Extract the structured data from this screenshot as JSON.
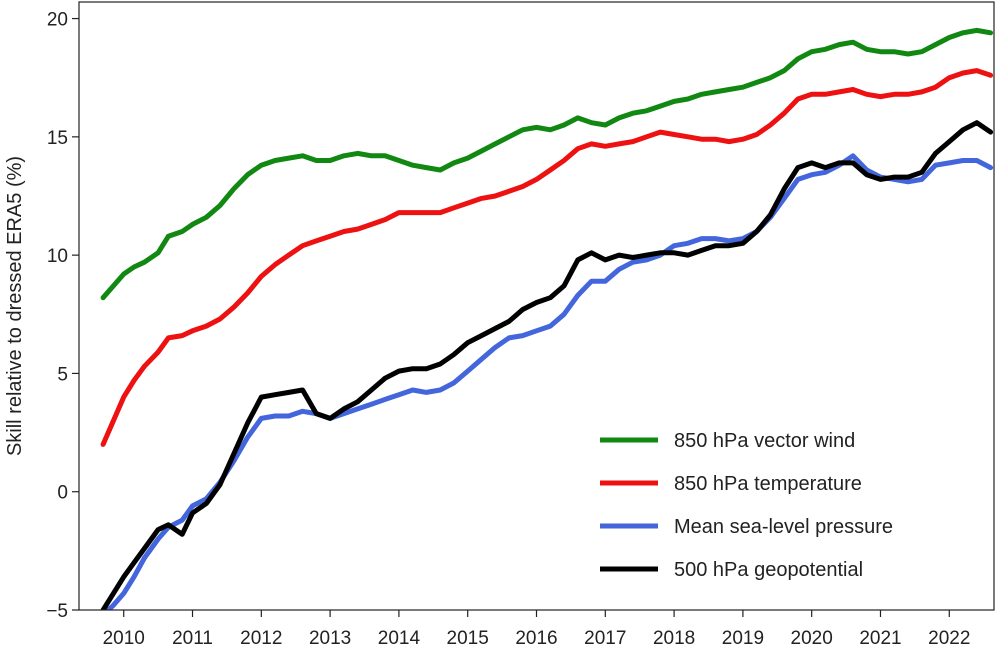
{
  "chart_data": {
    "type": "line",
    "title": "",
    "xlabel": "",
    "ylabel": "Skill relative to dressed ERA5 (%)",
    "xlim": [
      2009.35,
      2022.65
    ],
    "ylim": [
      -5,
      20.7
    ],
    "x_ticks": [
      2010,
      2011,
      2012,
      2013,
      2014,
      2015,
      2016,
      2017,
      2018,
      2019,
      2020,
      2021,
      2022
    ],
    "x_tick_labels": [
      "2010",
      "2011",
      "2012",
      "2013",
      "2014",
      "2015",
      "2016",
      "2017",
      "2018",
      "2019",
      "2020",
      "2021",
      "2022"
    ],
    "y_ticks": [
      -5,
      0,
      5,
      10,
      15,
      20
    ],
    "y_tick_labels": [
      "−5",
      "0",
      "5",
      "10",
      "15",
      "20"
    ],
    "grid": false,
    "legend_position": "bottom-right",
    "series": [
      {
        "name": "850 hPa vector wind",
        "color": "#118811",
        "x": [
          2009.7,
          2009.85,
          2010.0,
          2010.15,
          2010.3,
          2010.5,
          2010.65,
          2010.85,
          2011.0,
          2011.2,
          2011.4,
          2011.6,
          2011.8,
          2012.0,
          2012.2,
          2012.4,
          2012.6,
          2012.8,
          2013.0,
          2013.2,
          2013.4,
          2013.6,
          2013.8,
          2014.0,
          2014.2,
          2014.4,
          2014.6,
          2014.8,
          2015.0,
          2015.2,
          2015.4,
          2015.6,
          2015.8,
          2016.0,
          2016.2,
          2016.4,
          2016.6,
          2016.8,
          2017.0,
          2017.2,
          2017.4,
          2017.6,
          2017.8,
          2018.0,
          2018.2,
          2018.4,
          2018.6,
          2018.8,
          2019.0,
          2019.2,
          2019.4,
          2019.6,
          2019.8,
          2020.0,
          2020.2,
          2020.4,
          2020.6,
          2020.8,
          2021.0,
          2021.2,
          2021.4,
          2021.6,
          2021.8,
          2022.0,
          2022.2,
          2022.4,
          2022.6
        ],
        "values": [
          8.2,
          8.7,
          9.2,
          9.5,
          9.7,
          10.1,
          10.8,
          11.0,
          11.3,
          11.6,
          12.1,
          12.8,
          13.4,
          13.8,
          14.0,
          14.1,
          14.2,
          14.0,
          14.0,
          14.2,
          14.3,
          14.2,
          14.2,
          14.0,
          13.8,
          13.7,
          13.6,
          13.9,
          14.1,
          14.4,
          14.7,
          15.0,
          15.3,
          15.4,
          15.3,
          15.5,
          15.8,
          15.6,
          15.5,
          15.8,
          16.0,
          16.1,
          16.3,
          16.5,
          16.6,
          16.8,
          16.9,
          17.0,
          17.1,
          17.3,
          17.5,
          17.8,
          18.3,
          18.6,
          18.7,
          18.9,
          19.0,
          18.7,
          18.6,
          18.6,
          18.5,
          18.6,
          18.9,
          19.2,
          19.4,
          19.5,
          19.4
        ]
      },
      {
        "name": "850 hPa temperature",
        "color": "#ee1111",
        "x": [
          2009.7,
          2009.85,
          2010.0,
          2010.15,
          2010.3,
          2010.5,
          2010.65,
          2010.85,
          2011.0,
          2011.2,
          2011.4,
          2011.6,
          2011.8,
          2012.0,
          2012.2,
          2012.4,
          2012.6,
          2012.8,
          2013.0,
          2013.2,
          2013.4,
          2013.6,
          2013.8,
          2014.0,
          2014.2,
          2014.4,
          2014.6,
          2014.8,
          2015.0,
          2015.2,
          2015.4,
          2015.6,
          2015.8,
          2016.0,
          2016.2,
          2016.4,
          2016.6,
          2016.8,
          2017.0,
          2017.2,
          2017.4,
          2017.6,
          2017.8,
          2018.0,
          2018.2,
          2018.4,
          2018.6,
          2018.8,
          2019.0,
          2019.2,
          2019.4,
          2019.6,
          2019.8,
          2020.0,
          2020.2,
          2020.4,
          2020.6,
          2020.8,
          2021.0,
          2021.2,
          2021.4,
          2021.6,
          2021.8,
          2022.0,
          2022.2,
          2022.4,
          2022.6
        ],
        "values": [
          2.0,
          3.0,
          4.0,
          4.7,
          5.3,
          5.9,
          6.5,
          6.6,
          6.8,
          7.0,
          7.3,
          7.8,
          8.4,
          9.1,
          9.6,
          10.0,
          10.4,
          10.6,
          10.8,
          11.0,
          11.1,
          11.3,
          11.5,
          11.8,
          11.8,
          11.8,
          11.8,
          12.0,
          12.2,
          12.4,
          12.5,
          12.7,
          12.9,
          13.2,
          13.6,
          14.0,
          14.5,
          14.7,
          14.6,
          14.7,
          14.8,
          15.0,
          15.2,
          15.1,
          15.0,
          14.9,
          14.9,
          14.8,
          14.9,
          15.1,
          15.5,
          16.0,
          16.6,
          16.8,
          16.8,
          16.9,
          17.0,
          16.8,
          16.7,
          16.8,
          16.8,
          16.9,
          17.1,
          17.5,
          17.7,
          17.8,
          17.6
        ]
      },
      {
        "name": "Mean sea-level pressure",
        "color": "#4466dd",
        "x": [
          2009.7,
          2009.85,
          2010.0,
          2010.15,
          2010.3,
          2010.5,
          2010.65,
          2010.85,
          2011.0,
          2011.2,
          2011.4,
          2011.6,
          2011.8,
          2012.0,
          2012.2,
          2012.4,
          2012.6,
          2012.8,
          2013.0,
          2013.2,
          2013.4,
          2013.6,
          2013.8,
          2014.0,
          2014.2,
          2014.4,
          2014.6,
          2014.8,
          2015.0,
          2015.2,
          2015.4,
          2015.6,
          2015.8,
          2016.0,
          2016.2,
          2016.4,
          2016.6,
          2016.8,
          2017.0,
          2017.2,
          2017.4,
          2017.6,
          2017.8,
          2018.0,
          2018.2,
          2018.4,
          2018.6,
          2018.8,
          2019.0,
          2019.2,
          2019.4,
          2019.6,
          2019.8,
          2020.0,
          2020.2,
          2020.4,
          2020.6,
          2020.8,
          2021.0,
          2021.2,
          2021.4,
          2021.6,
          2021.8,
          2022.0,
          2022.2,
          2022.4,
          2022.6
        ],
        "values": [
          -5.2,
          -4.8,
          -4.3,
          -3.6,
          -2.8,
          -2.0,
          -1.5,
          -1.2,
          -0.6,
          -0.3,
          0.4,
          1.3,
          2.3,
          3.1,
          3.2,
          3.2,
          3.4,
          3.3,
          3.1,
          3.3,
          3.5,
          3.7,
          3.9,
          4.1,
          4.3,
          4.2,
          4.3,
          4.6,
          5.1,
          5.6,
          6.1,
          6.5,
          6.6,
          6.8,
          7.0,
          7.5,
          8.3,
          8.9,
          8.9,
          9.4,
          9.7,
          9.8,
          10.0,
          10.4,
          10.5,
          10.7,
          10.7,
          10.6,
          10.7,
          11.0,
          11.6,
          12.4,
          13.2,
          13.4,
          13.5,
          13.8,
          14.2,
          13.6,
          13.3,
          13.2,
          13.1,
          13.2,
          13.8,
          13.9,
          14.0,
          14.0,
          13.7
        ]
      },
      {
        "name": "500 hPa geopotential",
        "color": "#000000",
        "x": [
          2009.7,
          2009.85,
          2010.0,
          2010.15,
          2010.3,
          2010.5,
          2010.65,
          2010.85,
          2011.0,
          2011.2,
          2011.4,
          2011.6,
          2011.8,
          2012.0,
          2012.2,
          2012.4,
          2012.6,
          2012.8,
          2013.0,
          2013.2,
          2013.4,
          2013.6,
          2013.8,
          2014.0,
          2014.2,
          2014.4,
          2014.6,
          2014.8,
          2015.0,
          2015.2,
          2015.4,
          2015.6,
          2015.8,
          2016.0,
          2016.2,
          2016.4,
          2016.6,
          2016.8,
          2017.0,
          2017.2,
          2017.4,
          2017.6,
          2017.8,
          2018.0,
          2018.2,
          2018.4,
          2018.6,
          2018.8,
          2019.0,
          2019.2,
          2019.4,
          2019.6,
          2019.8,
          2020.0,
          2020.2,
          2020.4,
          2020.6,
          2020.8,
          2021.0,
          2021.2,
          2021.4,
          2021.6,
          2021.8,
          2022.0,
          2022.2,
          2022.4,
          2022.6
        ],
        "values": [
          -5.0,
          -4.3,
          -3.6,
          -3.0,
          -2.4,
          -1.6,
          -1.4,
          -1.8,
          -0.9,
          -0.5,
          0.3,
          1.6,
          2.9,
          4.0,
          4.1,
          4.2,
          4.3,
          3.3,
          3.1,
          3.5,
          3.8,
          4.3,
          4.8,
          5.1,
          5.2,
          5.2,
          5.4,
          5.8,
          6.3,
          6.6,
          6.9,
          7.2,
          7.7,
          8.0,
          8.2,
          8.7,
          9.8,
          10.1,
          9.8,
          10.0,
          9.9,
          10.0,
          10.1,
          10.1,
          10.0,
          10.2,
          10.4,
          10.4,
          10.5,
          11.0,
          11.7,
          12.8,
          13.7,
          13.9,
          13.7,
          13.9,
          13.9,
          13.4,
          13.2,
          13.3,
          13.3,
          13.5,
          14.3,
          14.8,
          15.3,
          15.6,
          15.2
        ]
      }
    ]
  }
}
